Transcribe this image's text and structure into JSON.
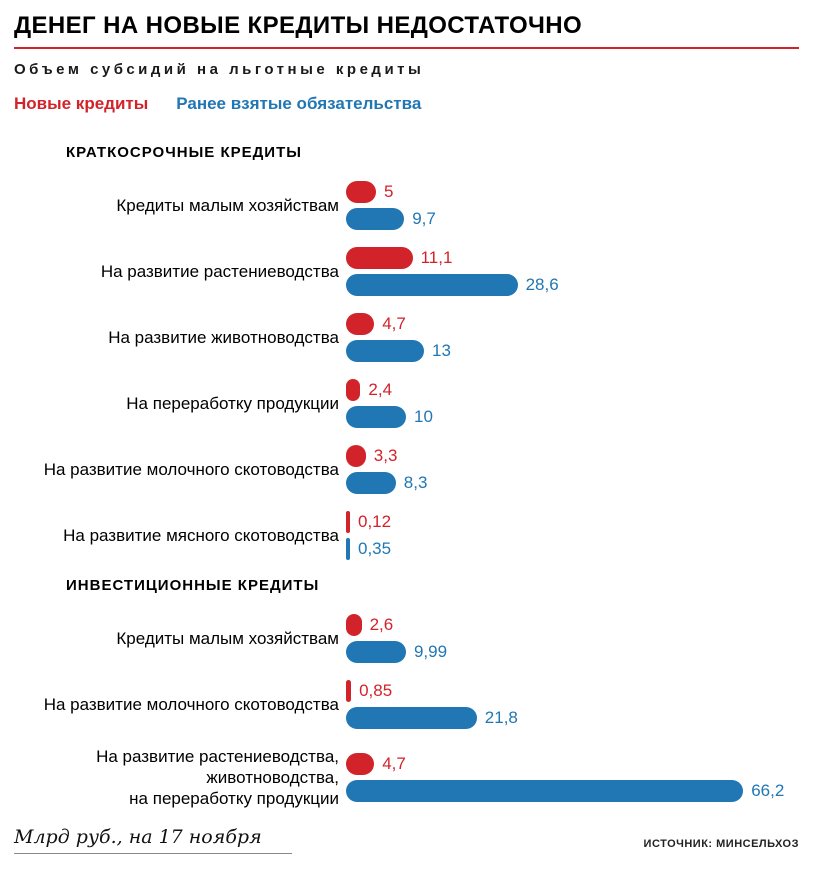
{
  "header": {
    "title": "ДЕНЕГ НА НОВЫЕ КРЕДИТЫ НЕДОСТАТОЧНО",
    "subtitle": "Объем субсидий на льготные кредиты"
  },
  "legend": {
    "new_loans_label": "Новые кредиты",
    "prior_obligations_label": "Ранее взятые обязательства"
  },
  "colors": {
    "new_loans": "#d2232a",
    "prior_obligations": "#2177b4"
  },
  "footer": {
    "units_note": "Млрд руб., на 17 ноября",
    "source": "ИСТОЧНИК: МИНСЕЛЬХОЗ"
  },
  "chart_data": {
    "type": "bar",
    "orientation": "horizontal",
    "units": "млрд руб.",
    "xlim": [
      0,
      70
    ],
    "legend_position": "top",
    "series_names": [
      "Новые кредиты",
      "Ранее взятые обязательства"
    ],
    "sections": [
      {
        "title": "КРАТКОСРОЧНЫЕ КРЕДИТЫ",
        "rows": [
          {
            "label": "Кредиты малым хозяйствам",
            "new_value": 5,
            "new_display": "5",
            "prior_value": 9.7,
            "prior_display": "9,7"
          },
          {
            "label": "На развитие растениеводства",
            "new_value": 11.1,
            "new_display": "11,1",
            "prior_value": 28.6,
            "prior_display": "28,6"
          },
          {
            "label": "На развитие животноводства",
            "new_value": 4.7,
            "new_display": "4,7",
            "prior_value": 13,
            "prior_display": "13"
          },
          {
            "label": "На переработку продукции",
            "new_value": 2.4,
            "new_display": "2,4",
            "prior_value": 10,
            "prior_display": "10"
          },
          {
            "label": "На развитие молочного скотоводства",
            "new_value": 3.3,
            "new_display": "3,3",
            "prior_value": 8.3,
            "prior_display": "8,3"
          },
          {
            "label": "На развитие мясного скотоводства",
            "new_value": 0.12,
            "new_display": "0,12",
            "prior_value": 0.35,
            "prior_display": "0,35"
          }
        ]
      },
      {
        "title": "ИНВЕСТИЦИОННЫЕ КРЕДИТЫ",
        "rows": [
          {
            "label": "Кредиты малым хозяйствам",
            "new_value": 2.6,
            "new_display": "2,6",
            "prior_value": 9.99,
            "prior_display": "9,99"
          },
          {
            "label": "На развитие молочного скотоводства",
            "new_value": 0.85,
            "new_display": "0,85",
            "prior_value": 21.8,
            "prior_display": "21,8"
          },
          {
            "label": "На развитие растениеводства,\nживотноводства,\nна переработку продукции",
            "new_value": 4.7,
            "new_display": "4,7",
            "prior_value": 66.2,
            "prior_display": "66,2"
          }
        ]
      }
    ]
  }
}
